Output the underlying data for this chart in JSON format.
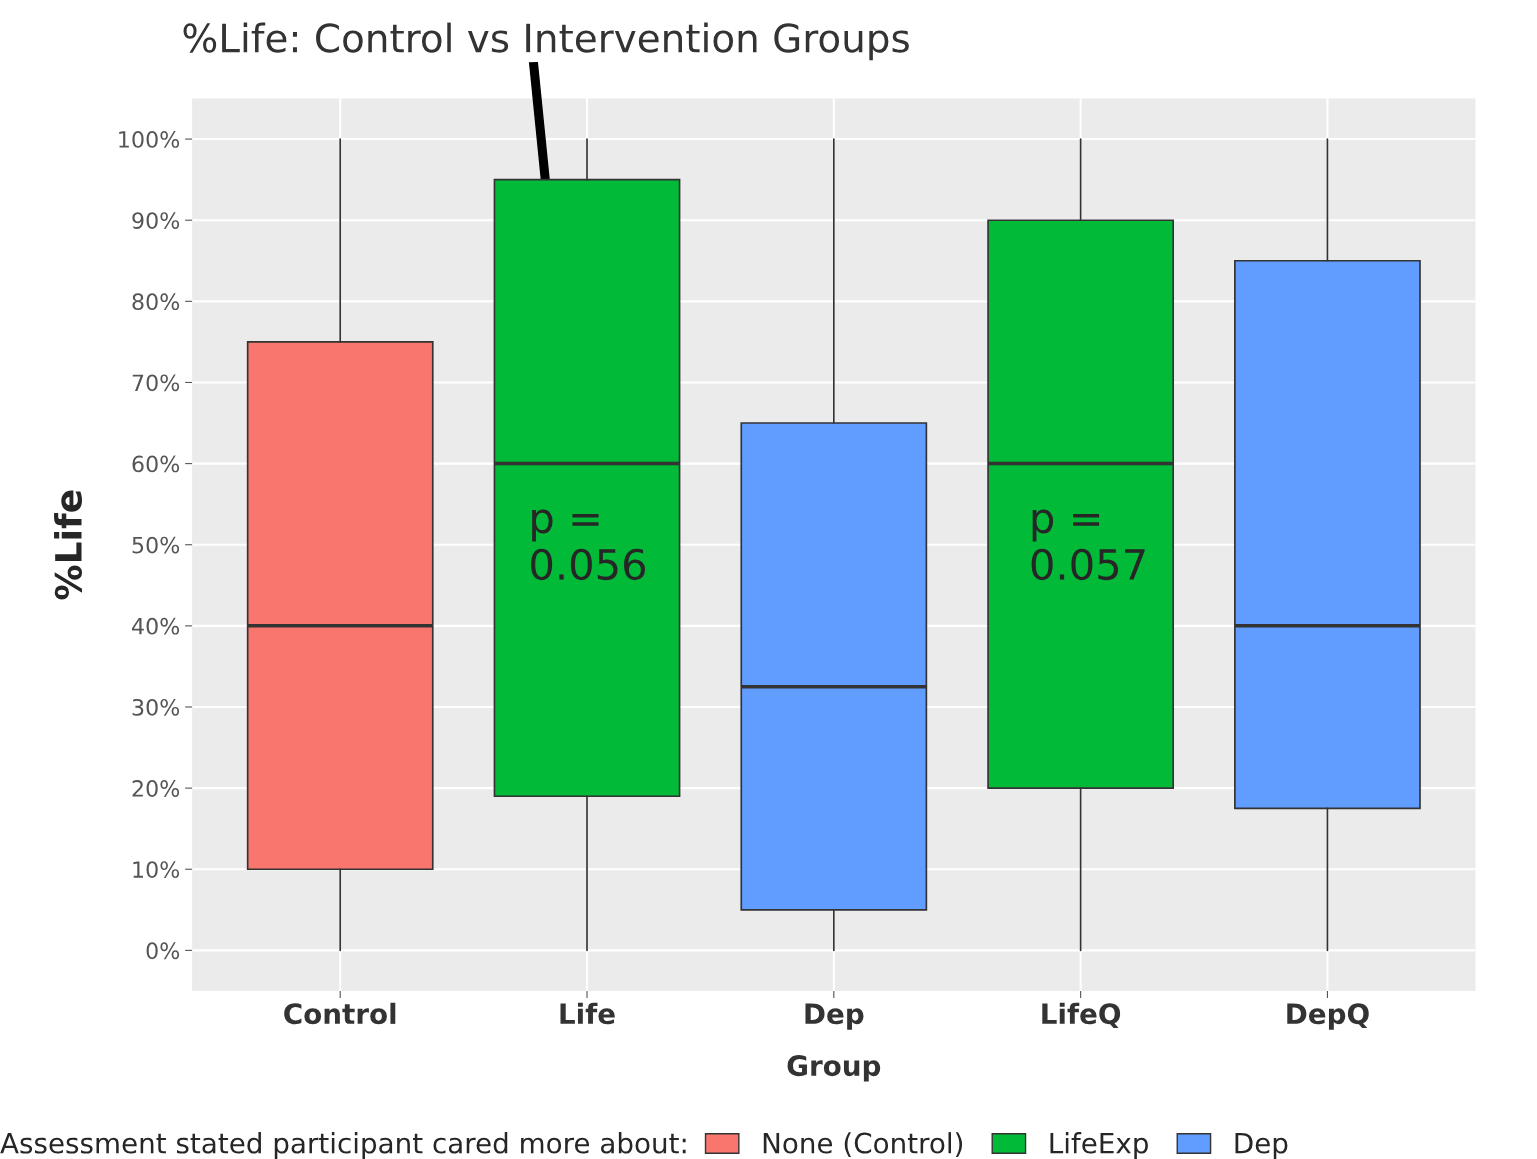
{
  "chart_data": {
    "type": "box",
    "title": "%Life: Control vs Intervention Groups",
    "xlabel": "Group",
    "ylabel": "%Life",
    "legend_title": "Assessment stated participant cared more about:",
    "categories": [
      "Control",
      "Life",
      "Dep",
      "LifeQ",
      "DepQ"
    ],
    "series": [
      {
        "name": "None (Control)",
        "color": "#f8766d",
        "boxes": [
          {
            "low": 0,
            "q1": 10,
            "median": 40,
            "q3": 75,
            "high": 100
          },
          null,
          null,
          null,
          null
        ]
      },
      {
        "name": "LifeExp",
        "color": "#00ba38",
        "boxes": [
          null,
          {
            "low": 0,
            "q1": 19,
            "median": 60,
            "q3": 95,
            "high": 100
          },
          null,
          {
            "low": 0,
            "q1": 20,
            "median": 60,
            "q3": 90,
            "high": 100
          },
          null
        ]
      },
      {
        "name": "Dep",
        "color": "#619cff",
        "boxes": [
          null,
          null,
          {
            "low": 0,
            "q1": 5,
            "median": 32.5,
            "q3": 65,
            "high": 100
          },
          null,
          {
            "low": 0,
            "q1": 17.5,
            "median": 40,
            "q3": 85,
            "high": 100
          }
        ]
      }
    ],
    "ylim": [
      -5,
      105
    ],
    "yticks": [
      {
        "value": 0,
        "label": "0%"
      },
      {
        "value": 10,
        "label": "10%"
      },
      {
        "value": 20,
        "label": "20%"
      },
      {
        "value": 30,
        "label": "30%"
      },
      {
        "value": 40,
        "label": "40%"
      },
      {
        "value": 50,
        "label": "50%"
      },
      {
        "value": 60,
        "label": "60%"
      },
      {
        "value": 70,
        "label": "70%"
      },
      {
        "value": 80,
        "label": "80%"
      },
      {
        "value": 90,
        "label": "90%"
      },
      {
        "value": 100,
        "label": "100%"
      }
    ],
    "annotations": [
      "p =\n0.056",
      "p =\n0.057"
    ],
    "grid": true,
    "legend": "bottom"
  }
}
